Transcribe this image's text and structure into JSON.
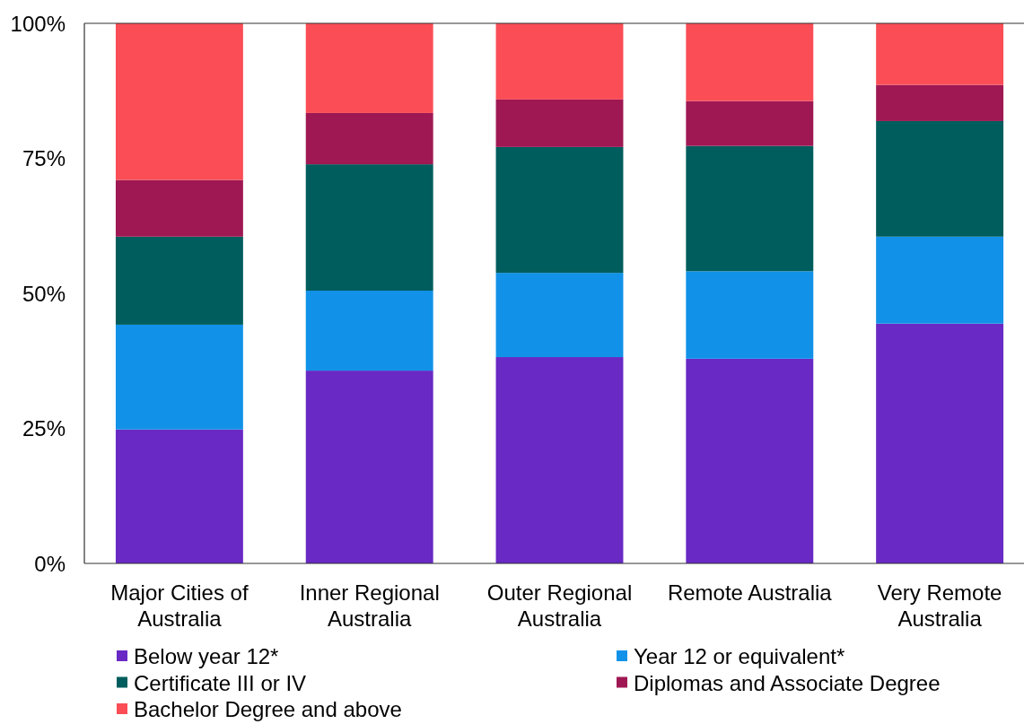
{
  "chart_data": {
    "type": "bar",
    "stacked": true,
    "categories": [
      "Major Cities of Australia",
      "Inner Regional Australia",
      "Outer Regional Australia",
      "Remote Australia",
      "Very Remote Australia"
    ],
    "series": [
      {
        "name": "Below year 12*",
        "color": "#6929c4",
        "values": [
          24.8,
          35.7,
          38.2,
          37.9,
          44.4
        ]
      },
      {
        "name": "Year 12 or equivalent*",
        "color": "#1192e8",
        "values": [
          19.4,
          14.8,
          15.6,
          16.2,
          16.1
        ]
      },
      {
        "name": "Certificate III or IV",
        "color": "#005d5d",
        "values": [
          16.3,
          23.4,
          23.3,
          23.2,
          21.4
        ]
      },
      {
        "name": "Diplomas and Associate Degree",
        "color": "#9f1853",
        "values": [
          10.5,
          9.5,
          8.8,
          8.3,
          6.7
        ]
      },
      {
        "name": "Bachelor Degree and above",
        "color": "#fa4d56",
        "values": [
          29.0,
          16.6,
          14.1,
          14.4,
          11.4
        ]
      }
    ],
    "ylim": [
      0,
      100
    ],
    "yticks": [
      {
        "value": 0,
        "label": "0%"
      },
      {
        "value": 25,
        "label": "25%"
      },
      {
        "value": 50,
        "label": "50%"
      },
      {
        "value": 75,
        "label": "75%"
      },
      {
        "value": 100,
        "label": "100%"
      }
    ],
    "legend": "bottom"
  }
}
